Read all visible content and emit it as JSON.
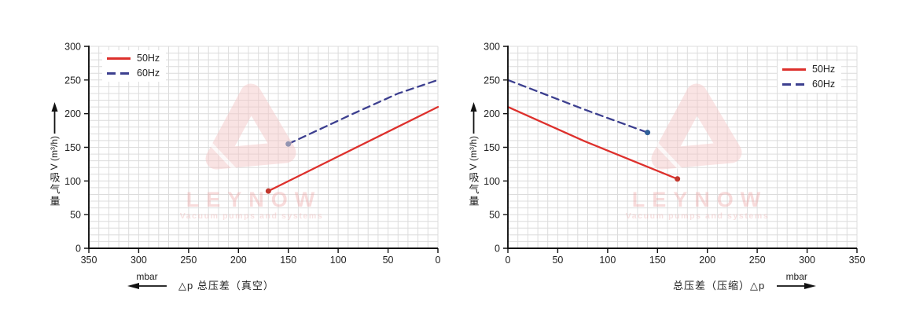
{
  "watermark": {
    "brand": "LEYNOW",
    "tagline": "Vacuum pumps and systems"
  },
  "ui": {
    "yaxis_unit": "V (m³/h)",
    "yaxis_cjk": "吸气量",
    "x_unit": "mbar"
  },
  "chart_data": [
    {
      "type": "line",
      "id": "vacuum-curve",
      "xlabel": "△p 总压差（真空）",
      "x_unit": "mbar",
      "x_arrow_direction": "left",
      "ylabel": "吸气量 V (m³/h)",
      "ylabel_latin": "V (m³/h)",
      "ylabel_cjk": "吸气量",
      "xlim": [
        350,
        0
      ],
      "ylim": [
        0,
        300
      ],
      "x_ticks": [
        350,
        300,
        250,
        200,
        150,
        100,
        50,
        0
      ],
      "y_ticks": [
        0,
        50,
        100,
        150,
        200,
        250,
        300
      ],
      "grid": true,
      "grid_step": 10,
      "legend_position": "top-left",
      "series": [
        {
          "name": "50Hz",
          "style": "solid",
          "color": "#dd302c",
          "points": [
            [
              170,
              85
            ],
            [
              0,
              210
            ]
          ],
          "marker": [
            170,
            85
          ],
          "marker_color": "#c2372d"
        },
        {
          "name": "60Hz",
          "style": "dashed",
          "color": "#3c3f8f",
          "points": [
            [
              150,
              155
            ],
            [
              85,
              200
            ],
            [
              40,
              230
            ],
            [
              0,
              250
            ]
          ],
          "marker": [
            150,
            155
          ],
          "marker_color": "#2f5f99"
        }
      ]
    },
    {
      "type": "line",
      "id": "compression-curve",
      "xlabel": "总压差（压缩）△p",
      "x_unit": "mbar",
      "x_arrow_direction": "right",
      "ylabel": "吸气量 V (m³/h)",
      "ylabel_latin": "V (m³/h)",
      "ylabel_cjk": "吸气量",
      "xlim": [
        0,
        350
      ],
      "ylim": [
        0,
        300
      ],
      "x_ticks": [
        0,
        50,
        100,
        150,
        200,
        250,
        300,
        350
      ],
      "y_ticks": [
        0,
        50,
        100,
        150,
        200,
        250,
        300
      ],
      "grid": true,
      "grid_step": 10,
      "legend_position": "top-right",
      "series": [
        {
          "name": "50Hz",
          "style": "solid",
          "color": "#dd302c",
          "points": [
            [
              0,
              210
            ],
            [
              77,
              159
            ],
            [
              170,
              103
            ]
          ],
          "marker": [
            170,
            103
          ],
          "marker_color": "#c2372d"
        },
        {
          "name": "60Hz",
          "style": "dashed",
          "color": "#3c3f8f",
          "points": [
            [
              0,
              250
            ],
            [
              77,
              206
            ],
            [
              140,
              172
            ]
          ],
          "marker": [
            140,
            172
          ],
          "marker_color": "#2f5f99"
        }
      ]
    }
  ]
}
